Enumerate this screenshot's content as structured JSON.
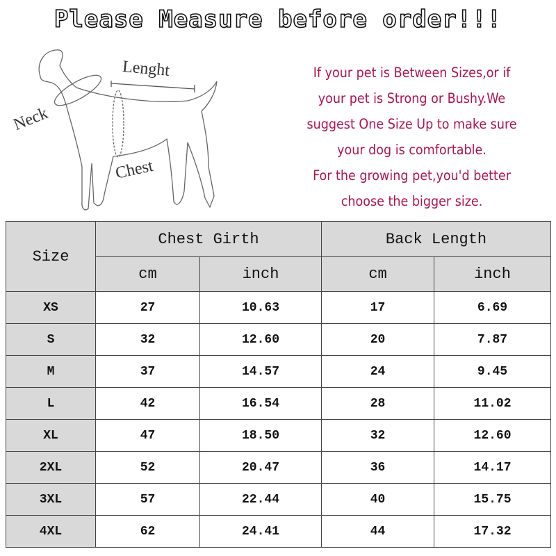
{
  "title": "Please Measure before order!!!",
  "diagram": {
    "labels": {
      "neck": "Neck",
      "length": "Lenght",
      "chest": "Chest"
    }
  },
  "tips": [
    "If your pet is Between Sizes,or if",
    "your pet is Strong or Bushy.We",
    "suggest One Size Up to make sure",
    "your dog is comfortable.",
    "For the growing pet,you'd better",
    "choose the bigger size."
  ],
  "colors": {
    "tips_text": "#b0134f",
    "header_bg": "#d9d9d9"
  },
  "table": {
    "size_header": "Size",
    "groups": [
      "Chest Girth",
      "Back Length"
    ],
    "units": [
      "cm",
      "inch",
      "cm",
      "inch"
    ],
    "rows": [
      [
        "XS",
        "27",
        "10.63",
        "17",
        "6.69"
      ],
      [
        "S",
        "32",
        "12.60",
        "20",
        "7.87"
      ],
      [
        "M",
        "37",
        "14.57",
        "24",
        "9.45"
      ],
      [
        "L",
        "42",
        "16.54",
        "28",
        "11.02"
      ],
      [
        "XL",
        "47",
        "18.50",
        "32",
        "12.60"
      ],
      [
        "2XL",
        "52",
        "20.47",
        "36",
        "14.17"
      ],
      [
        "3XL",
        "57",
        "22.44",
        "40",
        "15.75"
      ],
      [
        "4XL",
        "62",
        "24.41",
        "44",
        "17.32"
      ]
    ]
  }
}
